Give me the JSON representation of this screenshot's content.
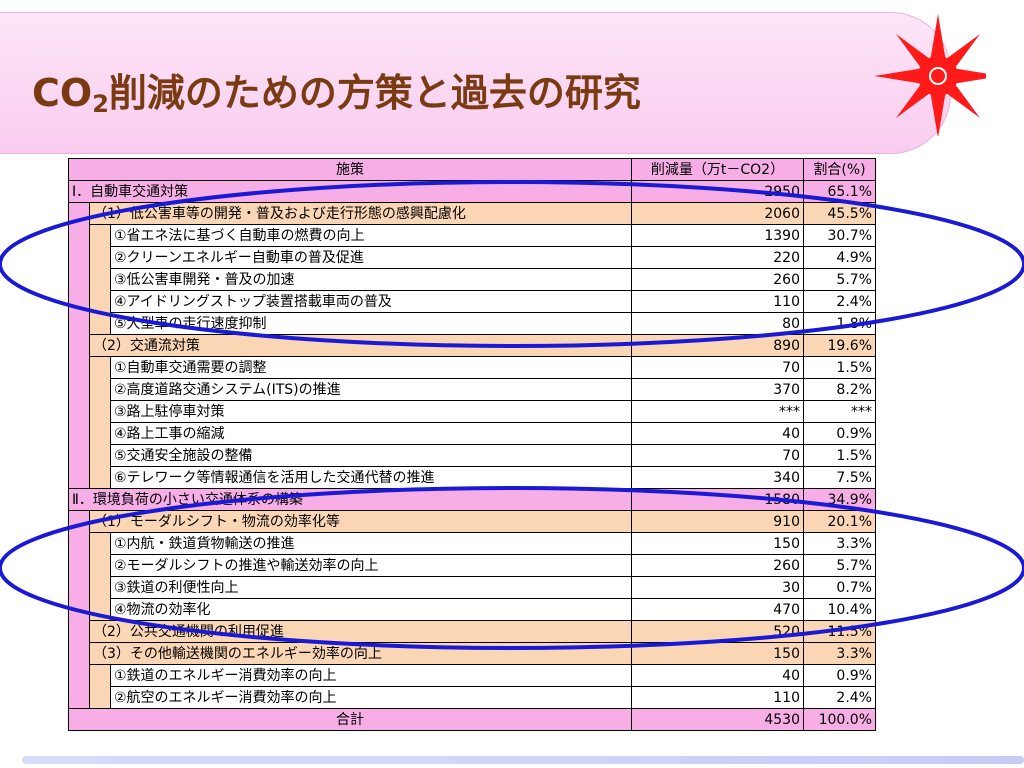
{
  "title": {
    "prefix": "CO",
    "sub": "2",
    "rest": "削減のための方策と過去の研究"
  },
  "colors": {
    "header": "#f7aee6",
    "group": "#fbd6b4",
    "ellipse": "#1a1ad6",
    "logo": "#ff1a1a"
  },
  "table": {
    "headers": {
      "measure": "施策",
      "reduction": "削減量（万t－CO2）",
      "ratio": "割合(%)"
    },
    "rows": [
      {
        "level": 1,
        "label": "Ⅰ．自動車交通対策",
        "value": "2950",
        "pct": "65.1%"
      },
      {
        "level": 2,
        "label": "（1）低公害車等の開発・普及および走行形態の感興配慮化",
        "value": "2060",
        "pct": "45.5%"
      },
      {
        "level": 3,
        "label": "①省エネ法に基づく自動車の燃費の向上",
        "value": "1390",
        "pct": "30.7%"
      },
      {
        "level": 3,
        "label": "②クリーンエネルギー自動車の普及促進",
        "value": "220",
        "pct": "4.9%"
      },
      {
        "level": 3,
        "label": "③低公害車開発・普及の加速",
        "value": "260",
        "pct": "5.7%"
      },
      {
        "level": 3,
        "label": "④アイドリングストップ装置搭載車両の普及",
        "value": "110",
        "pct": "2.4%"
      },
      {
        "level": 3,
        "label": "⑤大型車の走行速度抑制",
        "value": "80",
        "pct": "1.8%"
      },
      {
        "level": 2,
        "label": "（2）交通流対策",
        "value": "890",
        "pct": "19.6%"
      },
      {
        "level": 3,
        "label": "①自動車交通需要の調整",
        "value": "70",
        "pct": "1.5%"
      },
      {
        "level": 3,
        "label": "②高度道路交通システム(ITS)の推進",
        "value": "370",
        "pct": "8.2%"
      },
      {
        "level": 3,
        "label": "③路上駐停車対策",
        "value": "***",
        "pct": "***"
      },
      {
        "level": 3,
        "label": "④路上工事の縮減",
        "value": "40",
        "pct": "0.9%"
      },
      {
        "level": 3,
        "label": "⑤交通安全施設の整備",
        "value": "70",
        "pct": "1.5%"
      },
      {
        "level": 3,
        "label": "⑥テレワーク等情報通信を活用した交通代替の推進",
        "value": "340",
        "pct": "7.5%"
      },
      {
        "level": 1,
        "label": "Ⅱ．環境負荷の小さい交通体系の構築",
        "value": "1580",
        "pct": "34.9%"
      },
      {
        "level": 2,
        "label": "（1）モーダルシフト・物流の効率化等",
        "value": "910",
        "pct": "20.1%"
      },
      {
        "level": 3,
        "label": "①内航・鉄道貨物輸送の推進",
        "value": "150",
        "pct": "3.3%"
      },
      {
        "level": 3,
        "label": "②モーダルシフトの推進や輸送効率の向上",
        "value": "260",
        "pct": "5.7%"
      },
      {
        "level": 3,
        "label": "③鉄道の利便性向上",
        "value": "30",
        "pct": "0.7%"
      },
      {
        "level": 3,
        "label": "④物流の効率化",
        "value": "470",
        "pct": "10.4%"
      },
      {
        "level": 2,
        "label": "（2）公共交通機関の利用促進",
        "value": "520",
        "pct": "11.5%"
      },
      {
        "level": 2,
        "label": "（3）その他輸送機関のエネルギー効率の向上",
        "value": "150",
        "pct": "3.3%"
      },
      {
        "level": 3,
        "label": "①鉄道のエネルギー消費効率の向上",
        "value": "40",
        "pct": "0.9%"
      },
      {
        "level": 3,
        "label": "②航空のエネルギー消費効率の向上",
        "value": "110",
        "pct": "2.4%"
      }
    ],
    "total": {
      "label": "合計",
      "value": "4530",
      "pct": "100.0%"
    }
  }
}
